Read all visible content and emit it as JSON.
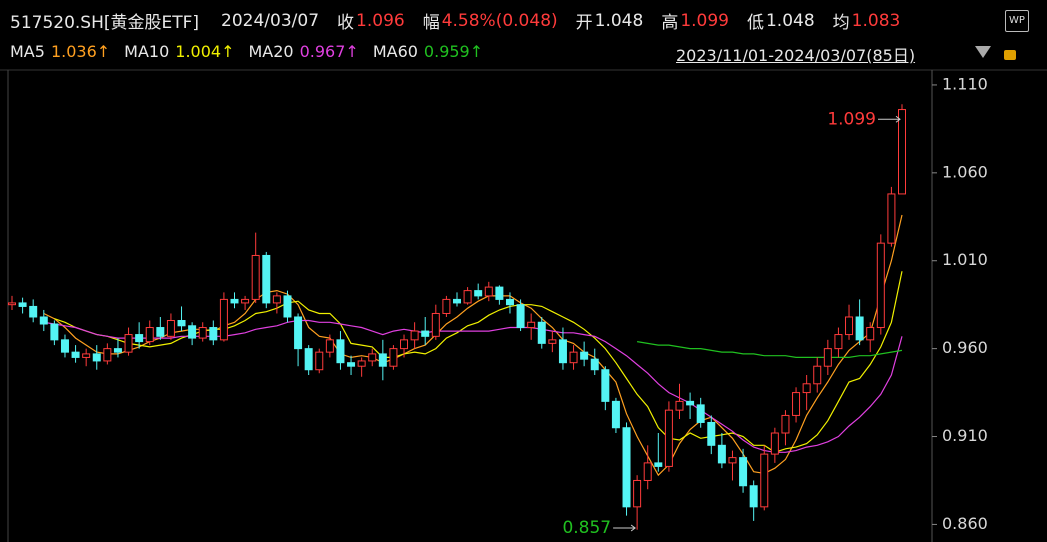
{
  "header": {
    "symbol": "517520.SH[黄金股ETF]",
    "date": "2024/03/07",
    "items": [
      {
        "label": "收",
        "value": 1.096,
        "color": "#ff3b3b"
      },
      {
        "label": "幅",
        "value": "4.58%(0.048)",
        "color": "#ff3b3b"
      },
      {
        "label": "开",
        "value": 1.048,
        "color": "#e8e8e8"
      },
      {
        "label": "高",
        "value": 1.099,
        "color": "#ff3b3b"
      },
      {
        "label": "低",
        "value": 1.048,
        "color": "#e8e8e8"
      },
      {
        "label": "均",
        "value": 1.083,
        "color": "#ff3b3b"
      }
    ],
    "range": "2023/11/01-2024/03/07(85日)",
    "logo": "WP"
  },
  "chart_data": {
    "type": "candlestick",
    "up_color": "#ff3b3b",
    "down_color": "#54f4f4",
    "ylim": [
      0.85,
      1.1185
    ],
    "yticks": [
      {
        "value": 0.86,
        "label": "0.860"
      },
      {
        "value": 0.91,
        "label": "0.910"
      },
      {
        "value": 0.96,
        "label": "0.960"
      },
      {
        "value": 1.01,
        "label": "1.010"
      },
      {
        "value": 1.06,
        "label": "1.060"
      },
      {
        "value": 1.11,
        "label": "1.110"
      }
    ],
    "open": [
      0.985,
      0.986,
      0.984,
      0.978,
      0.974,
      0.965,
      0.958,
      0.955,
      0.957,
      0.953,
      0.96,
      0.958,
      0.968,
      0.964,
      0.972,
      0.967,
      0.976,
      0.973,
      0.966,
      0.972,
      0.965,
      0.988,
      0.986,
      0.988,
      1.013,
      0.986,
      0.99,
      0.978,
      0.96,
      0.948,
      0.958,
      0.965,
      0.952,
      0.95,
      0.953,
      0.957,
      0.95,
      0.96,
      0.965,
      0.97,
      0.967,
      0.98,
      0.988,
      0.986,
      0.993,
      0.99,
      0.995,
      0.988,
      0.985,
      0.972,
      0.975,
      0.963,
      0.965,
      0.952,
      0.958,
      0.954,
      0.948,
      0.93,
      0.915,
      0.87,
      0.885,
      0.895,
      0.893,
      0.925,
      0.93,
      0.928,
      0.918,
      0.905,
      0.895,
      0.898,
      0.882,
      0.87,
      0.9,
      0.912,
      0.922,
      0.935,
      0.94,
      0.95,
      0.96,
      0.968,
      0.978,
      0.965,
      0.972,
      1.02,
      1.048
    ],
    "high": [
      0.99,
      0.989,
      0.988,
      0.982,
      0.976,
      0.968,
      0.962,
      0.96,
      0.962,
      0.963,
      0.966,
      0.972,
      0.975,
      0.976,
      0.978,
      0.98,
      0.984,
      0.975,
      0.975,
      0.976,
      0.992,
      0.992,
      0.99,
      1.026,
      1.015,
      0.992,
      0.993,
      0.98,
      0.962,
      0.96,
      0.968,
      0.97,
      0.956,
      0.955,
      0.96,
      0.965,
      0.962,
      0.968,
      0.975,
      0.978,
      0.985,
      0.99,
      0.992,
      0.995,
      0.997,
      0.998,
      0.996,
      0.992,
      0.988,
      0.98,
      0.978,
      0.97,
      0.972,
      0.962,
      0.964,
      0.96,
      0.95,
      0.932,
      0.918,
      0.888,
      0.905,
      0.912,
      0.93,
      0.94,
      0.935,
      0.932,
      0.922,
      0.912,
      0.902,
      0.903,
      0.885,
      0.905,
      0.915,
      0.925,
      0.938,
      0.945,
      0.955,
      0.965,
      0.972,
      0.985,
      0.988,
      0.975,
      1.025,
      1.052,
      1.099
    ],
    "low": [
      0.982,
      0.98,
      0.975,
      0.97,
      0.962,
      0.955,
      0.952,
      0.95,
      0.948,
      0.951,
      0.955,
      0.956,
      0.96,
      0.962,
      0.965,
      0.965,
      0.97,
      0.962,
      0.964,
      0.962,
      0.964,
      0.983,
      0.982,
      0.986,
      0.983,
      0.98,
      0.975,
      0.95,
      0.945,
      0.946,
      0.955,
      0.948,
      0.945,
      0.944,
      0.95,
      0.942,
      0.948,
      0.955,
      0.96,
      0.962,
      0.965,
      0.978,
      0.984,
      0.985,
      0.988,
      0.987,
      0.985,
      0.98,
      0.97,
      0.965,
      0.96,
      0.958,
      0.948,
      0.948,
      0.95,
      0.945,
      0.925,
      0.912,
      0.865,
      0.857,
      0.88,
      0.89,
      0.89,
      0.92,
      0.92,
      0.915,
      0.9,
      0.892,
      0.885,
      0.878,
      0.862,
      0.868,
      0.895,
      0.905,
      0.918,
      0.925,
      0.935,
      0.945,
      0.955,
      0.965,
      0.962,
      0.958,
      0.968,
      1.018,
      1.048
    ],
    "close": [
      0.986,
      0.984,
      0.978,
      0.974,
      0.965,
      0.958,
      0.955,
      0.957,
      0.953,
      0.96,
      0.958,
      0.968,
      0.964,
      0.972,
      0.967,
      0.976,
      0.973,
      0.966,
      0.972,
      0.965,
      0.988,
      0.986,
      0.988,
      1.013,
      0.986,
      0.99,
      0.978,
      0.96,
      0.948,
      0.958,
      0.965,
      0.952,
      0.95,
      0.953,
      0.957,
      0.95,
      0.96,
      0.965,
      0.97,
      0.967,
      0.98,
      0.988,
      0.986,
      0.993,
      0.99,
      0.995,
      0.988,
      0.985,
      0.972,
      0.975,
      0.963,
      0.965,
      0.952,
      0.958,
      0.954,
      0.948,
      0.93,
      0.915,
      0.87,
      0.885,
      0.895,
      0.893,
      0.925,
      0.93,
      0.928,
      0.918,
      0.905,
      0.895,
      0.898,
      0.882,
      0.87,
      0.9,
      0.912,
      0.922,
      0.935,
      0.94,
      0.95,
      0.96,
      0.968,
      0.978,
      0.965,
      0.972,
      1.02,
      1.048,
      1.096
    ],
    "series": [
      {
        "name": "MA5",
        "color": "#ffa020",
        "last_label": "1.036↑",
        "values": [
          null,
          null,
          null,
          0.98,
          0.977,
          0.972,
          0.966,
          0.962,
          0.958,
          0.957,
          0.957,
          0.959,
          0.961,
          0.964,
          0.966,
          0.969,
          0.97,
          0.971,
          0.971,
          0.97,
          0.973,
          0.975,
          0.98,
          0.988,
          0.992,
          0.993,
          0.991,
          0.985,
          0.972,
          0.967,
          0.966,
          0.957,
          0.955,
          0.956,
          0.955,
          0.952,
          0.954,
          0.957,
          0.96,
          0.962,
          0.968,
          0.974,
          0.978,
          0.983,
          0.987,
          0.99,
          0.99,
          0.99,
          0.986,
          0.983,
          0.977,
          0.972,
          0.965,
          0.963,
          0.958,
          0.955,
          0.948,
          0.941,
          0.923,
          0.91,
          0.899,
          0.888,
          0.894,
          0.906,
          0.914,
          0.919,
          0.921,
          0.915,
          0.909,
          0.9,
          0.89,
          0.889,
          0.892,
          0.897,
          0.908,
          0.922,
          0.932,
          0.941,
          0.951,
          0.959,
          0.964,
          0.969,
          0.99,
          1.01,
          1.036
        ]
      },
      {
        "name": "MA10",
        "color": "#f0f000",
        "last_label": "1.004↑",
        "values": [
          null,
          null,
          null,
          null,
          0.977,
          0.975,
          0.972,
          0.97,
          0.968,
          0.967,
          0.965,
          0.963,
          0.962,
          0.961,
          0.962,
          0.963,
          0.966,
          0.968,
          0.97,
          0.971,
          0.971,
          0.973,
          0.976,
          0.98,
          0.981,
          0.983,
          0.986,
          0.987,
          0.982,
          0.98,
          0.98,
          0.974,
          0.963,
          0.962,
          0.961,
          0.955,
          0.955,
          0.957,
          0.958,
          0.957,
          0.96,
          0.966,
          0.969,
          0.973,
          0.975,
          0.979,
          0.982,
          0.984,
          0.985,
          0.985,
          0.984,
          0.981,
          0.978,
          0.975,
          0.971,
          0.966,
          0.96,
          0.952,
          0.943,
          0.934,
          0.927,
          0.915,
          0.909,
          0.908,
          0.912,
          0.909,
          0.91,
          0.911,
          0.912,
          0.91,
          0.905,
          0.905,
          0.901,
          0.903,
          0.904,
          0.906,
          0.911,
          0.919,
          0.93,
          0.941,
          0.943,
          0.951,
          0.961,
          0.975,
          1.004
        ]
      },
      {
        "name": "MA20",
        "color": "#e040e0",
        "last_label": "0.967↑",
        "values": [
          null,
          null,
          null,
          0.975,
          0.974,
          0.973,
          0.972,
          0.97,
          0.968,
          0.967,
          0.966,
          0.966,
          0.966,
          0.966,
          0.966,
          0.966,
          0.967,
          0.967,
          0.967,
          0.967,
          0.967,
          0.968,
          0.969,
          0.971,
          0.972,
          0.973,
          0.975,
          0.976,
          0.976,
          0.975,
          0.975,
          0.974,
          0.973,
          0.972,
          0.97,
          0.968,
          0.97,
          0.971,
          0.97,
          0.969,
          0.97,
          0.97,
          0.97,
          0.97,
          0.97,
          0.97,
          0.971,
          0.972,
          0.972,
          0.972,
          0.971,
          0.97,
          0.969,
          0.969,
          0.968,
          0.967,
          0.964,
          0.96,
          0.956,
          0.951,
          0.946,
          0.94,
          0.935,
          0.932,
          0.929,
          0.925,
          0.921,
          0.917,
          0.913,
          0.908,
          0.904,
          0.902,
          0.901,
          0.901,
          0.902,
          0.904,
          0.905,
          0.907,
          0.91,
          0.916,
          0.921,
          0.927,
          0.934,
          0.945,
          0.967
        ]
      },
      {
        "name": "MA60",
        "color": "#20c020",
        "last_label": "0.959↑",
        "values": [
          null,
          null,
          null,
          null,
          null,
          null,
          null,
          null,
          null,
          null,
          null,
          null,
          null,
          null,
          null,
          null,
          null,
          null,
          null,
          null,
          null,
          null,
          null,
          null,
          null,
          null,
          null,
          null,
          null,
          null,
          null,
          null,
          null,
          null,
          null,
          null,
          null,
          null,
          null,
          null,
          null,
          null,
          null,
          null,
          null,
          null,
          null,
          null,
          null,
          null,
          null,
          null,
          null,
          null,
          null,
          null,
          null,
          null,
          null,
          0.964,
          0.963,
          0.962,
          0.962,
          0.961,
          0.96,
          0.96,
          0.959,
          0.958,
          0.958,
          0.957,
          0.957,
          0.956,
          0.956,
          0.956,
          0.955,
          0.955,
          0.955,
          0.955,
          0.955,
          0.955,
          0.956,
          0.956,
          0.957,
          0.958,
          0.959
        ]
      }
    ],
    "annotations": [
      {
        "label": "1.099",
        "value": 1.099,
        "color": "#ff3b3b"
      },
      {
        "label": "0.857",
        "value": 0.857,
        "color": "#20c020"
      }
    ]
  }
}
